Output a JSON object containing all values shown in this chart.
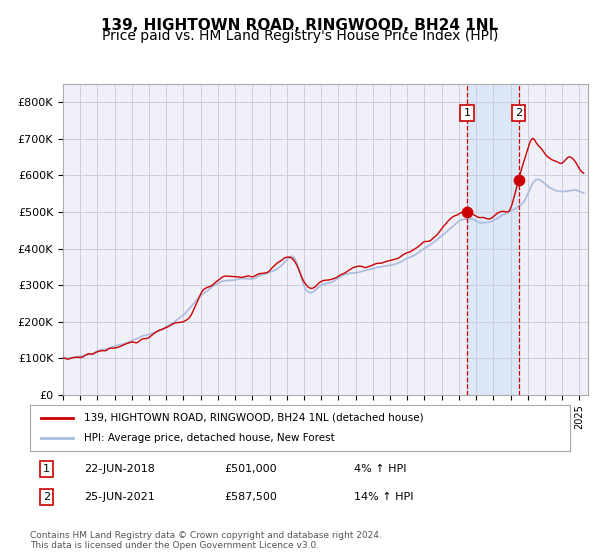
{
  "title": "139, HIGHTOWN ROAD, RINGWOOD, BH24 1NL",
  "subtitle": "Price paid vs. HM Land Registry's House Price Index (HPI)",
  "ylim": [
    0,
    850000
  ],
  "yticks": [
    0,
    100000,
    200000,
    300000,
    400000,
    500000,
    600000,
    700000,
    800000
  ],
  "ytick_labels": [
    "£0",
    "£100K",
    "£200K",
    "£300K",
    "£400K",
    "£500K",
    "£600K",
    "£700K",
    "£800K"
  ],
  "sale1_date": 2018.47,
  "sale1_price": 501000,
  "sale1_label": "22-JUN-2018",
  "sale1_pct": "4%",
  "sale2_date": 2021.48,
  "sale2_price": 587500,
  "sale2_label": "25-JUN-2021",
  "sale2_pct": "14%",
  "background_color": "#ffffff",
  "plot_bg_color": "#f0f0f8",
  "grid_color": "#ccccdd",
  "hpi_line_color": "#aabbdd",
  "price_line_color": "#cc0000",
  "sale_dot_color": "#cc0000",
  "shade_color": "#dce8f8",
  "dashed_color": "#cc0000",
  "legend_label1": "139, HIGHTOWN ROAD, RINGWOOD, BH24 1NL (detached house)",
  "legend_label2": "HPI: Average price, detached house, New Forest",
  "footer": "Contains HM Land Registry data © Crown copyright and database right 2024.\nThis data is licensed under the Open Government Licence v3.0.",
  "title_fontsize": 11,
  "subtitle_fontsize": 10,
  "anchor_hpi_t": [
    1995.0,
    1996.0,
    1997.5,
    1998.5,
    2000.0,
    2001.0,
    2002.0,
    2003.0,
    2004.0,
    2005.0,
    2006.0,
    2007.0,
    2007.75,
    2008.5,
    2009.0,
    2009.5,
    2010.0,
    2010.5,
    2011.0,
    2011.5,
    2012.0,
    2012.5,
    2013.0,
    2013.5,
    2014.0,
    2014.5,
    2015.0,
    2015.5,
    2016.0,
    2016.5,
    2017.0,
    2017.5,
    2018.0,
    2018.47,
    2018.8,
    2019.0,
    2019.5,
    2020.0,
    2020.5,
    2021.0,
    2021.48,
    2021.8,
    2022.0,
    2022.3,
    2022.6,
    2023.0,
    2023.5,
    2024.0,
    2024.5,
    2025.0,
    2025.5
  ],
  "anchor_hpi_v": [
    100000,
    105000,
    125000,
    140000,
    165000,
    185000,
    220000,
    270000,
    305000,
    315000,
    318000,
    335000,
    355000,
    370000,
    300000,
    280000,
    300000,
    305000,
    320000,
    330000,
    335000,
    340000,
    345000,
    350000,
    355000,
    360000,
    375000,
    385000,
    400000,
    415000,
    435000,
    455000,
    475000,
    480000,
    478000,
    475000,
    470000,
    475000,
    490000,
    500000,
    515000,
    530000,
    550000,
    580000,
    590000,
    575000,
    560000,
    555000,
    560000,
    555000,
    548000
  ],
  "anchor_price_t": [
    1995.0,
    1996.5,
    1998.0,
    1999.5,
    2000.5,
    2001.5,
    2002.5,
    2003.0,
    2003.5,
    2004.0,
    2005.0,
    2006.0,
    2007.0,
    2008.0,
    2008.5,
    2009.0,
    2009.5,
    2010.0,
    2010.5,
    2011.0,
    2011.5,
    2012.0,
    2012.5,
    2013.0,
    2013.5,
    2014.0,
    2014.5,
    2015.0,
    2015.5,
    2016.0,
    2016.5,
    2017.0,
    2017.5,
    2018.0,
    2018.47,
    2018.8,
    2019.0,
    2019.5,
    2020.0,
    2020.5,
    2021.0,
    2021.48,
    2021.8,
    2022.0,
    2022.3,
    2022.5,
    2022.8,
    2023.0,
    2023.5,
    2024.0,
    2024.5,
    2025.0,
    2025.5
  ],
  "anchor_price_v": [
    100000,
    110000,
    130000,
    148000,
    172000,
    195000,
    225000,
    280000,
    295000,
    315000,
    322000,
    325000,
    340000,
    375000,
    360000,
    310000,
    290000,
    308000,
    315000,
    325000,
    340000,
    348000,
    350000,
    355000,
    362000,
    368000,
    375000,
    390000,
    400000,
    415000,
    430000,
    455000,
    480000,
    495000,
    501000,
    495000,
    490000,
    482000,
    485000,
    498000,
    510000,
    587500,
    640000,
    670000,
    700000,
    690000,
    675000,
    660000,
    640000,
    635000,
    650000,
    620000,
    610000
  ]
}
